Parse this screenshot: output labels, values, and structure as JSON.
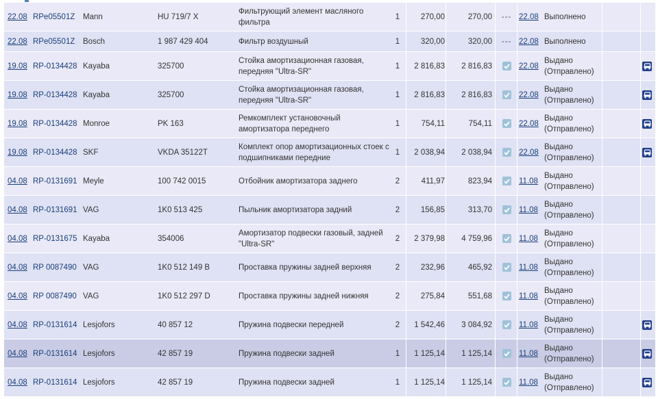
{
  "colors": {
    "row_odd": "#e9e9f7",
    "row_even": "#dfe2f4",
    "row_highlight": "#c9cce4",
    "link": "#1a3e7a",
    "check_bg": "#9fc2d9",
    "car_icon_bg": "#1f3d8a"
  },
  "orders": [
    {
      "date": "22.08",
      "order_no": "RPe05501Z",
      "brand": "Mann",
      "article": "HU 719/7 X",
      "description": "Фильтрующий элемент масляного фильтра",
      "qty": "1",
      "price": "270,00",
      "sum": "270,00",
      "confirmed": false,
      "mark": "---",
      "delivery_date": "22.08",
      "status": "Выполнено",
      "has_car_icon": false
    },
    {
      "date": "22.08",
      "order_no": "RPe05501Z",
      "brand": "Bosch",
      "article": "1 987 429 404",
      "description": "Фильтр воздушный",
      "qty": "1",
      "price": "320,00",
      "sum": "320,00",
      "confirmed": false,
      "mark": "---",
      "delivery_date": "22.08",
      "status": "Выполнено",
      "has_car_icon": false
    },
    {
      "date": "19.08",
      "order_no": "RP-0134428",
      "brand": "Kayaba",
      "article": "325700",
      "description": "Стойка амортизационная газовая, передняя \"Ultra-SR\"",
      "qty": "1",
      "price": "2 816,83",
      "sum": "2 816,83",
      "confirmed": true,
      "mark": "",
      "delivery_date": "22.08",
      "status": "Выдано (Отправлено)",
      "has_car_icon": true
    },
    {
      "date": "19.08",
      "order_no": "RP-0134428",
      "brand": "Kayaba",
      "article": "325700",
      "description": "Стойка амортизационная газовая, передняя \"Ultra-SR\"",
      "qty": "1",
      "price": "2 816,83",
      "sum": "2 816,83",
      "confirmed": true,
      "mark": "",
      "delivery_date": "22.08",
      "status": "Выдано (Отправлено)",
      "has_car_icon": true
    },
    {
      "date": "19.08",
      "order_no": "RP-0134428",
      "brand": "Monroe",
      "article": "PK 163",
      "description": "Ремкомплект установочный амортизатора переднего",
      "qty": "1",
      "price": "754,11",
      "sum": "754,11",
      "confirmed": true,
      "mark": "",
      "delivery_date": "22.08",
      "status": "Выдано (Отправлено)",
      "has_car_icon": true
    },
    {
      "date": "19.08",
      "order_no": "RP-0134428",
      "brand": "SKF",
      "article": "VKDA 35122T",
      "description": "Комплект опор амортизационных стоек с подшипниками передние",
      "qty": "1",
      "price": "2 038,94",
      "sum": "2 038,94",
      "confirmed": true,
      "mark": "",
      "delivery_date": "22.08",
      "status": "Выдано (Отправлено)",
      "has_car_icon": true
    },
    {
      "date": "04.08",
      "order_no": "RP-0131691",
      "brand": "Meyle",
      "article": "100 742 0015",
      "description": "Отбойник амортизатора заднего",
      "qty": "2",
      "price": "411,97",
      "sum": "823,94",
      "confirmed": true,
      "mark": "",
      "delivery_date": "11.08",
      "status": "Выдано (Отправлено)",
      "has_car_icon": false
    },
    {
      "date": "04.08",
      "order_no": "RP-0131691",
      "brand": "VAG",
      "article": "1K0 513 425",
      "description": "Пыльник амортизатора задний",
      "qty": "2",
      "price": "156,85",
      "sum": "313,70",
      "confirmed": true,
      "mark": "",
      "delivery_date": "11.08",
      "status": "Выдано (Отправлено)",
      "has_car_icon": false
    },
    {
      "date": "04.08",
      "order_no": "RP-0131675",
      "brand": "Kayaba",
      "article": "354006",
      "description": "Амортизатор подвески газовый, задней \"Ultra-SR\"",
      "qty": "2",
      "price": "2 379,98",
      "sum": "4 759,96",
      "confirmed": true,
      "mark": "",
      "delivery_date": "11.08",
      "status": "Выдано (Отправлено)",
      "has_car_icon": false
    },
    {
      "date": "04.08",
      "order_no": "RP 0087490",
      "brand": "VAG",
      "article": "1K0 512 149 B",
      "description": "Проставка пружины задней верхняя",
      "qty": "2",
      "price": "232,96",
      "sum": "465,92",
      "confirmed": true,
      "mark": "",
      "delivery_date": "11.08",
      "status": "Выдано (Отправлено)",
      "has_car_icon": false
    },
    {
      "date": "04.08",
      "order_no": "RP 0087490",
      "brand": "VAG",
      "article": "1K0 512 297 D",
      "description": "Проставка пружины задней нижняя",
      "qty": "2",
      "price": "275,84",
      "sum": "551,68",
      "confirmed": true,
      "mark": "",
      "delivery_date": "11.08",
      "status": "Выдано (Отправлено)",
      "has_car_icon": false
    },
    {
      "date": "04.08",
      "order_no": "RP-0131614",
      "brand": "Lesjofors",
      "article": "40 857 12",
      "description": "Пружина подвески передней",
      "qty": "2",
      "price": "1 542,46",
      "sum": "3 084,92",
      "confirmed": true,
      "mark": "",
      "delivery_date": "11.08",
      "status": "Выдано (Отправлено)",
      "has_car_icon": true
    },
    {
      "date": "04.08",
      "order_no": "RP-0131614",
      "brand": "Lesjofors",
      "article": "42 857 19",
      "description": "Пружина подвески задней",
      "qty": "1",
      "price": "1 125,14",
      "sum": "1 125,14",
      "confirmed": true,
      "mark": "",
      "delivery_date": "11.08",
      "status": "Выдано (Отправлено)",
      "has_car_icon": true,
      "highlighted": true
    },
    {
      "date": "04.08",
      "order_no": "RP-0131614",
      "brand": "Lesjofors",
      "article": "42 857 19",
      "description": "Пружина подвески задней",
      "qty": "1",
      "price": "1 125,14",
      "sum": "1 125,14",
      "confirmed": true,
      "mark": "",
      "delivery_date": "11.08",
      "status": "Выдано (Отправлено)",
      "has_car_icon": true
    }
  ]
}
